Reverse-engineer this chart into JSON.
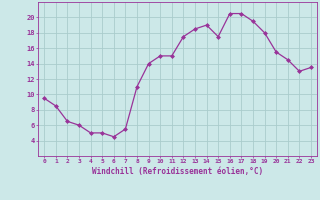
{
  "x": [
    0,
    1,
    2,
    3,
    4,
    5,
    6,
    7,
    8,
    9,
    10,
    11,
    12,
    13,
    14,
    15,
    16,
    17,
    18,
    19,
    20,
    21,
    22,
    23
  ],
  "y": [
    9.5,
    8.5,
    6.5,
    6.0,
    5.0,
    5.0,
    4.5,
    5.5,
    11.0,
    14.0,
    15.0,
    15.0,
    17.5,
    18.5,
    19.0,
    17.5,
    20.5,
    20.5,
    19.5,
    18.0,
    15.5,
    14.5,
    13.0,
    13.5
  ],
  "line_color": "#993399",
  "marker": "D",
  "marker_size": 2,
  "bg_color": "#cce8e8",
  "grid_color": "#aacccc",
  "xlabel": "Windchill (Refroidissement éolien,°C)",
  "xlabel_color": "#993399",
  "tick_color": "#993399",
  "ylim": [
    2,
    22
  ],
  "xlim": [
    -0.5,
    23.5
  ],
  "yticks": [
    4,
    6,
    8,
    10,
    12,
    14,
    16,
    18,
    20
  ],
  "xticks": [
    0,
    1,
    2,
    3,
    4,
    5,
    6,
    7,
    8,
    9,
    10,
    11,
    12,
    13,
    14,
    15,
    16,
    17,
    18,
    19,
    20,
    21,
    22,
    23
  ],
  "xtick_labels": [
    "0",
    "1",
    "2",
    "3",
    "4",
    "5",
    "6",
    "7",
    "8",
    "9",
    "10",
    "11",
    "12",
    "13",
    "14",
    "15",
    "16",
    "17",
    "18",
    "19",
    "20",
    "21",
    "22",
    "23"
  ],
  "ytick_labels": [
    "4",
    "6",
    "8",
    "10",
    "12",
    "14",
    "16",
    "18",
    "20"
  ]
}
